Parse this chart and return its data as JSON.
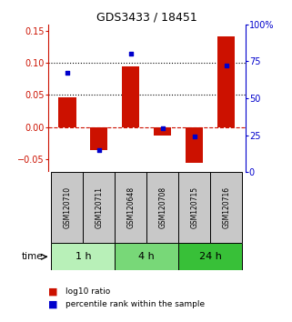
{
  "title": "GDS3433 / 18451",
  "samples": [
    "GSM120710",
    "GSM120711",
    "GSM120648",
    "GSM120708",
    "GSM120715",
    "GSM120716"
  ],
  "log10_ratio": [
    0.046,
    -0.036,
    0.095,
    -0.013,
    -0.055,
    0.141
  ],
  "percentile_rank": [
    67,
    15,
    80,
    30,
    24,
    72
  ],
  "groups": [
    {
      "label": "1 h",
      "indices": [
        0,
        1
      ],
      "color": "#b8f0b8"
    },
    {
      "label": "4 h",
      "indices": [
        2,
        3
      ],
      "color": "#78d878"
    },
    {
      "label": "24 h",
      "indices": [
        4,
        5
      ],
      "color": "#38c038"
    }
  ],
  "bar_color": "#cc1100",
  "dot_color": "#0000cc",
  "ylim_left": [
    -0.07,
    0.16
  ],
  "ylim_right": [
    0,
    100
  ],
  "yticks_left": [
    -0.05,
    0,
    0.05,
    0.1,
    0.15
  ],
  "yticks_right": [
    0,
    25,
    50,
    75,
    100
  ],
  "hlines": [
    0.05,
    0.1
  ],
  "zero_line": 0.0,
  "label_log10": "log10 ratio",
  "label_pct": "percentile rank within the sample",
  "time_label": "time",
  "sample_box_color": "#c8c8c8",
  "bg_color": "#ffffff"
}
